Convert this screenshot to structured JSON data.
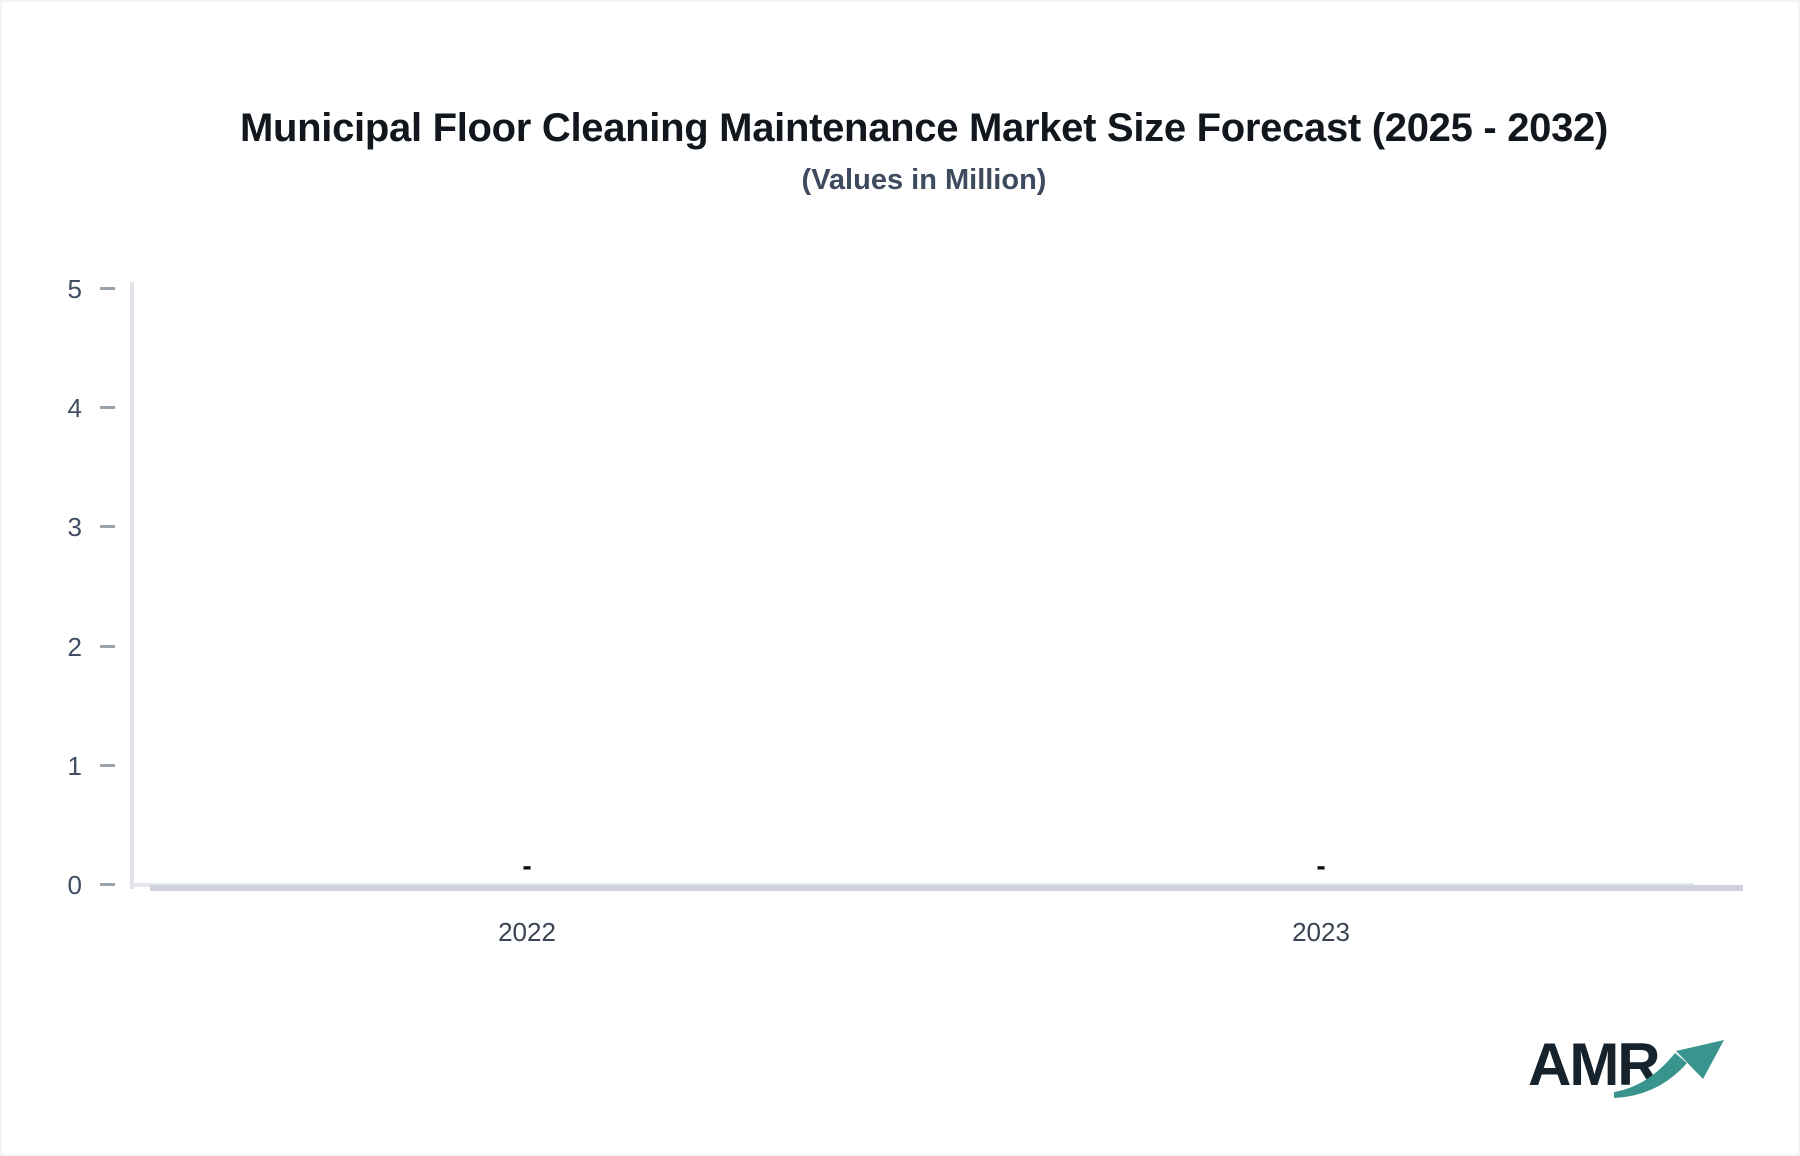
{
  "chart_data": {
    "type": "bar",
    "title": "Municipal Floor Cleaning Maintenance Market Size Forecast (2025 - 2032)",
    "subtitle": "(Values in Million)",
    "categories": [
      "2022",
      "2023"
    ],
    "values": [
      null,
      null
    ],
    "value_display": [
      "-",
      "-"
    ],
    "xlabel": "",
    "ylabel": "",
    "ylim": [
      0,
      5
    ],
    "yticks": [
      0,
      1,
      2,
      3,
      4,
      5
    ],
    "grid": false,
    "legend": false
  },
  "logo": {
    "text": "AMR",
    "text_color": "#16222c",
    "arrow_color": "#3a948e"
  },
  "colors": {
    "background": "#ffffff",
    "title": "#12171d",
    "subtitle": "#3e4a5e",
    "axis_label": "#414d62",
    "tick_mark": "#9aa2ac",
    "axis_line": "#e0e3e8",
    "baseline_overlay": "#ced3db",
    "null_marker": "#0d1014"
  }
}
